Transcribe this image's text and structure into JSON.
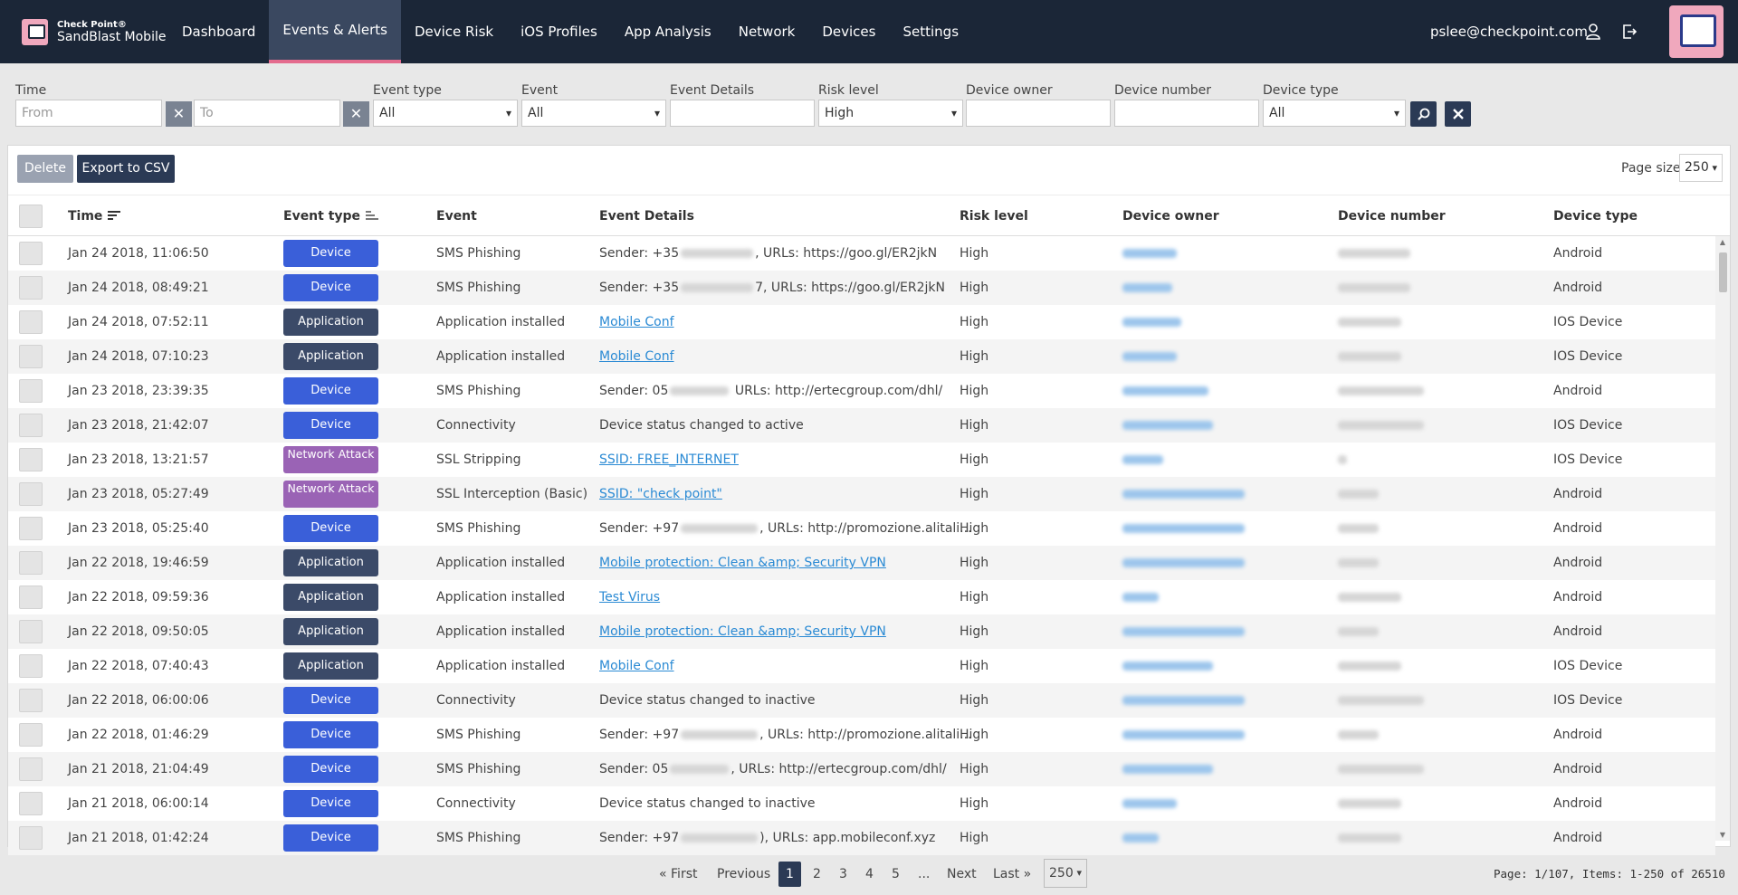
{
  "brand": {
    "small": "Check Point®",
    "name": "SandBlast Mobile"
  },
  "nav": [
    {
      "label": "Dashboard",
      "active": false
    },
    {
      "label": "Events & Alerts",
      "active": true
    },
    {
      "label": "Device Risk",
      "active": false
    },
    {
      "label": "iOS Profiles",
      "active": false
    },
    {
      "label": "App Analysis",
      "active": false
    },
    {
      "label": "Network",
      "active": false
    },
    {
      "label": "Devices",
      "active": false
    },
    {
      "label": "Settings",
      "active": false
    }
  ],
  "user": {
    "email": "pslee@checkpoint.com"
  },
  "filters": {
    "time_label": "Time",
    "from_placeholder": "From",
    "to_placeholder": "To",
    "event_type_label": "Event type",
    "event_type_value": "All",
    "event_label": "Event",
    "event_value": "All",
    "event_details_label": "Event Details",
    "event_details_value": "",
    "risk_level_label": "Risk level",
    "risk_level_value": "High",
    "device_owner_label": "Device owner",
    "device_owner_value": "",
    "device_number_label": "Device number",
    "device_number_value": "",
    "device_type_label": "Device type",
    "device_type_value": "All"
  },
  "toolbar": {
    "delete_label": "Delete",
    "export_label": "Export to CSV",
    "page_size_label": "Page size",
    "page_size_value": "250"
  },
  "columns": [
    "Time",
    "Event type",
    "Event",
    "Event Details",
    "Risk level",
    "Device owner",
    "Device number",
    "Device type"
  ],
  "rows": [
    {
      "time": "Jan 24 2018, 11:06:50",
      "type": "Device",
      "type_class": "device",
      "event": "SMS Phishing",
      "detail_pre": "Sender: +35",
      "detail_post": ", URLs: https://goo.gl/ER2jkN",
      "detail_link": false,
      "risk": "High",
      "device_type": "Android"
    },
    {
      "time": "Jan 24 2018, 08:49:21",
      "type": "Device",
      "type_class": "device",
      "event": "SMS Phishing",
      "detail_pre": "Sender: +35",
      "detail_post": "7, URLs: https://goo.gl/ER2jkN",
      "detail_link": false,
      "risk": "High",
      "device_type": "Android"
    },
    {
      "time": "Jan 24 2018, 07:52:11",
      "type": "Application",
      "type_class": "application",
      "event": "Application installed",
      "detail_pre": "Mobile Conf",
      "detail_post": "",
      "detail_link": true,
      "risk": "High",
      "device_type": "IOS Device"
    },
    {
      "time": "Jan 24 2018, 07:10:23",
      "type": "Application",
      "type_class": "application",
      "event": "Application installed",
      "detail_pre": "Mobile Conf",
      "detail_post": "",
      "detail_link": true,
      "risk": "High",
      "device_type": "IOS Device"
    },
    {
      "time": "Jan 23 2018, 23:39:35",
      "type": "Device",
      "type_class": "device",
      "event": "SMS Phishing",
      "detail_pre": "Sender: 05",
      "detail_post": " URLs: http://ertecgroup.com/dhl/",
      "detail_link": false,
      "risk": "High",
      "device_type": "Android"
    },
    {
      "time": "Jan 23 2018, 21:42:07",
      "type": "Device",
      "type_class": "device",
      "event": "Connectivity",
      "detail_pre": "Device status changed to active",
      "detail_post": "",
      "detail_link": false,
      "risk": "High",
      "device_type": "IOS Device"
    },
    {
      "time": "Jan 23 2018, 13:21:57",
      "type": "Network Attack",
      "type_class": "network",
      "event": "SSL Stripping",
      "detail_pre": "SSID: FREE_INTERNET",
      "detail_post": "",
      "detail_link": true,
      "risk": "High",
      "device_type": "IOS Device"
    },
    {
      "time": "Jan 23 2018, 05:27:49",
      "type": "Network Attack",
      "type_class": "network",
      "event": "SSL Interception (Basic)",
      "detail_pre": "SSID: \"check point\"",
      "detail_post": "",
      "detail_link": true,
      "risk": "High",
      "device_type": "Android"
    },
    {
      "time": "Jan 23 2018, 05:25:40",
      "type": "Device",
      "type_class": "device",
      "event": "SMS Phishing",
      "detail_pre": "Sender: +97",
      "detail_post": ", URLs: http://promozione.alitali...",
      "detail_link": false,
      "risk": "High",
      "device_type": "Android"
    },
    {
      "time": "Jan 22 2018, 19:46:59",
      "type": "Application",
      "type_class": "application",
      "event": "Application installed",
      "detail_pre": "Mobile protection: Clean &amp; Security VPN",
      "detail_post": "",
      "detail_link": true,
      "risk": "High",
      "device_type": "Android"
    },
    {
      "time": "Jan 22 2018, 09:59:36",
      "type": "Application",
      "type_class": "application",
      "event": "Application installed",
      "detail_pre": "Test Virus",
      "detail_post": "",
      "detail_link": true,
      "risk": "High",
      "device_type": "Android"
    },
    {
      "time": "Jan 22 2018, 09:50:05",
      "type": "Application",
      "type_class": "application",
      "event": "Application installed",
      "detail_pre": "Mobile protection: Clean &amp; Security VPN",
      "detail_post": "",
      "detail_link": true,
      "risk": "High",
      "device_type": "Android"
    },
    {
      "time": "Jan 22 2018, 07:40:43",
      "type": "Application",
      "type_class": "application",
      "event": "Application installed",
      "detail_pre": "Mobile Conf",
      "detail_post": "",
      "detail_link": true,
      "risk": "High",
      "device_type": "IOS Device"
    },
    {
      "time": "Jan 22 2018, 06:00:06",
      "type": "Device",
      "type_class": "device",
      "event": "Connectivity",
      "detail_pre": "Device status changed to inactive",
      "detail_post": "",
      "detail_link": false,
      "risk": "High",
      "device_type": "IOS Device"
    },
    {
      "time": "Jan 22 2018, 01:46:29",
      "type": "Device",
      "type_class": "device",
      "event": "SMS Phishing",
      "detail_pre": "Sender: +97",
      "detail_post": ", URLs: http://promozione.alitali...",
      "detail_link": false,
      "risk": "High",
      "device_type": "Android"
    },
    {
      "time": "Jan 21 2018, 21:04:49",
      "type": "Device",
      "type_class": "device",
      "event": "SMS Phishing",
      "detail_pre": "Sender: 05",
      "detail_post": ", URLs: http://ertecgroup.com/dhl/",
      "detail_link": false,
      "risk": "High",
      "device_type": "Android"
    },
    {
      "time": "Jan 21 2018, 06:00:14",
      "type": "Device",
      "type_class": "device",
      "event": "Connectivity",
      "detail_pre": "Device status changed to inactive",
      "detail_post": "",
      "detail_link": false,
      "risk": "High",
      "device_type": "Android"
    },
    {
      "time": "Jan 21 2018, 01:42:24",
      "type": "Device",
      "type_class": "device",
      "event": "SMS Phishing",
      "detail_pre": "Sender: +97",
      "detail_post": "), URLs: app.mobileconf.xyz",
      "detail_link": false,
      "risk": "High",
      "device_type": "Android"
    }
  ],
  "pagination": {
    "first": "« First",
    "previous": "Previous",
    "pages": [
      "1",
      "2",
      "3",
      "4",
      "5"
    ],
    "current": "1",
    "ellipsis": "...",
    "next": "Next",
    "last": "Last »",
    "size": "250",
    "info": "Page: 1/107, Items: 1-250 of 26510"
  },
  "colors": {
    "nav_bg": "#1b2637",
    "accent": "#e46b8e",
    "device_badge": "#3a5fd9",
    "application_badge": "#3b4a68",
    "network_badge": "#9a63b5",
    "link": "#2a8ad4"
  }
}
